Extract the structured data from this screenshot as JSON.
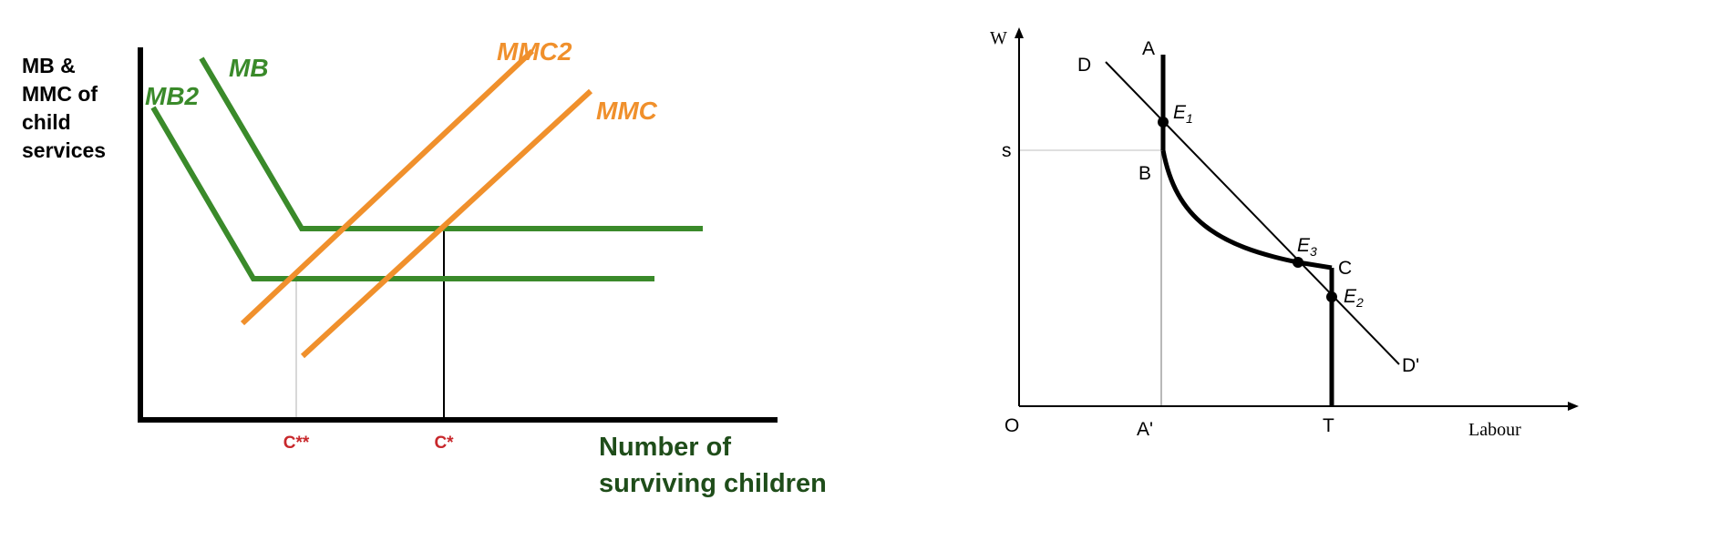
{
  "colors": {
    "green": "#3a8a2a",
    "dark_green": "#1f4d1a",
    "orange": "#f0902c",
    "red": "#c8282c",
    "black": "#000000",
    "guide_gray": "#cccccc"
  },
  "left_diagram": {
    "y_axis_label": [
      "MB &",
      "MMC of",
      "child",
      "services"
    ],
    "x_axis_label": [
      "Number of",
      "surviving children"
    ],
    "curves": {
      "mb": "MB",
      "mb2": "MB2",
      "mmc": "MMC",
      "mmc2": "MMC2"
    },
    "ticks": {
      "c_star_star": "C**",
      "c_star": "C*"
    }
  },
  "right_diagram": {
    "y_axis_label": "W",
    "x_axis_label": "Labour",
    "origin": "O",
    "points": {
      "a": "A",
      "a_prime": "A'",
      "b": "B",
      "c": "C",
      "d": "D",
      "d_prime": "D'",
      "s": "s",
      "t": "T",
      "e1": "E",
      "e1_sub": "1",
      "e2": "E",
      "e2_sub": "2",
      "e3": "E",
      "e3_sub": "3"
    }
  }
}
